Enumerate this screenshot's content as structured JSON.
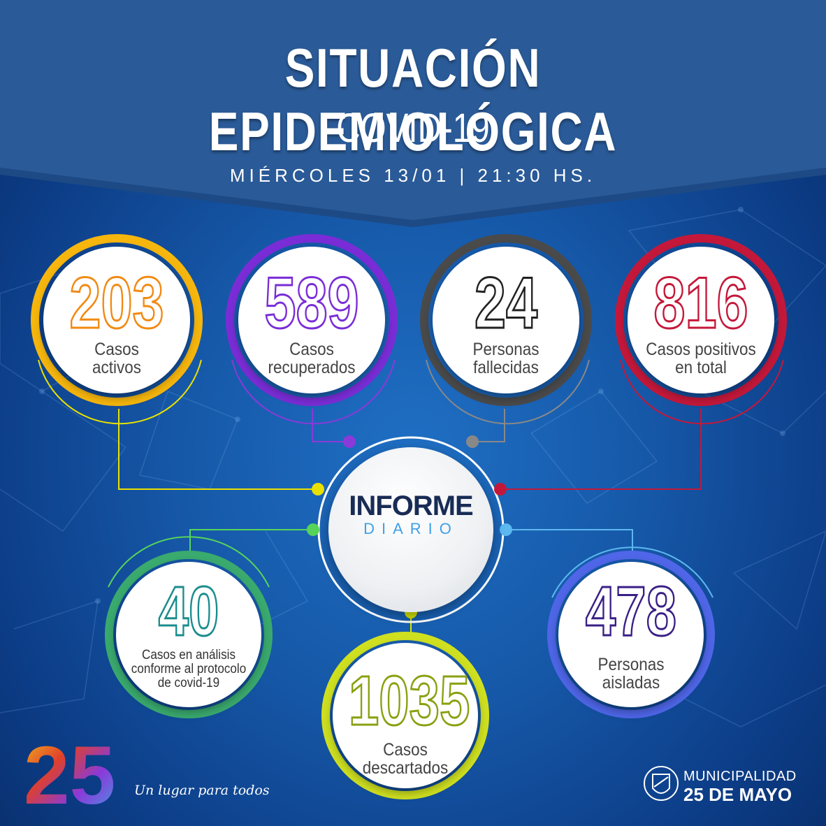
{
  "header": {
    "title": "SITUACIÓN EPIDEMIOLÓGICA",
    "subtitle": "COVID-19",
    "date": "MIÉRCOLES 13/01 | 21:30 HS."
  },
  "stats": {
    "activos": {
      "value": "203",
      "label_1": "Casos",
      "label_2": "activos",
      "color": "#f28a12"
    },
    "recuperados": {
      "value": "589",
      "label_1": "Casos",
      "label_2": "recuperados",
      "color": "#7a2dd6"
    },
    "fallecidas": {
      "value": "24",
      "label_1": "Personas",
      "label_2": "fallecidas",
      "color": "#222222"
    },
    "positivos": {
      "value": "816",
      "label_1": "Casos positivos",
      "label_2": "en total",
      "color": "#c4183a"
    },
    "analisis": {
      "value": "40",
      "label_1": "Casos en análisis",
      "label_2": "conforme al protocolo",
      "label_3": "de covid-19",
      "color": "#1b8c8c"
    },
    "descartados": {
      "value": "1035",
      "label_1": "Casos",
      "label_2": "descartados",
      "color": "#8aa010"
    },
    "aisladas": {
      "value": "478",
      "label_1": "Personas",
      "label_2": "aisladas",
      "color": "#3a1f86"
    }
  },
  "center": {
    "line_1": "INFORME",
    "line_2": "DIARIO"
  },
  "footer": {
    "logo_text": "25",
    "slogan": "Un lugar para todos",
    "muni_line_1": "MUNICIPALIDAD",
    "muni_line_2": "25 DE MAYO"
  }
}
